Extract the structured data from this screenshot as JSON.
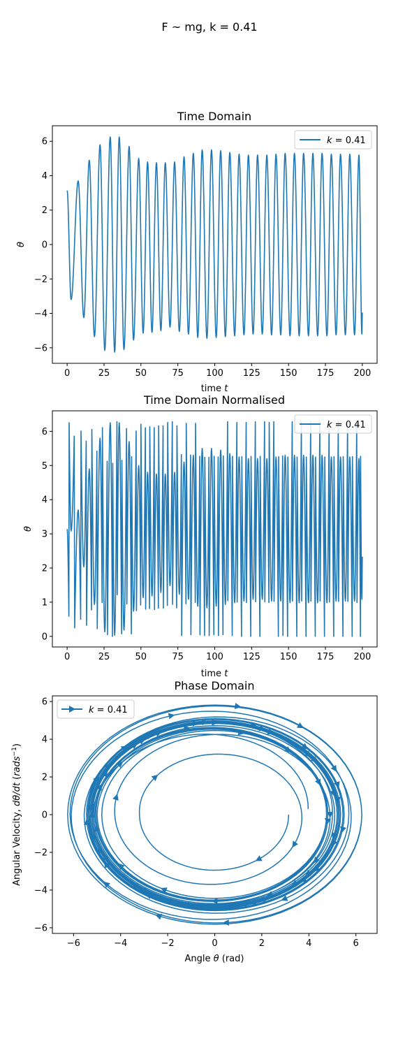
{
  "figure": {
    "suptitle": "F ~ mg, k = 0.41",
    "line_color": "#1f77b4"
  },
  "chart_data": [
    {
      "type": "line",
      "title": "Time Domain",
      "xlabel": "time t",
      "ylabel": "θ",
      "xlim": [
        -10,
        210
      ],
      "ylim": [
        -6.9,
        6.9
      ],
      "xticks": [
        0,
        25,
        50,
        75,
        100,
        125,
        150,
        175,
        200
      ],
      "yticks": [
        -6,
        -4,
        -2,
        0,
        2,
        4,
        6
      ],
      "legend": {
        "label": "k = 0.41",
        "loc": "upper right"
      },
      "grid": false,
      "series": [
        {
          "name": "k = 0.41",
          "extrema": [
            [
              0,
              3.14
            ],
            [
              2.7,
              -3.2
            ],
            [
              7.5,
              3.7
            ],
            [
              11.3,
              -4.25
            ],
            [
              15,
              4.9
            ],
            [
              18.5,
              -5.35
            ],
            [
              22.3,
              5.8
            ],
            [
              25.5,
              -6.15
            ],
            [
              29.2,
              6.25
            ],
            [
              32.2,
              -6.25
            ],
            [
              35.3,
              6.25
            ],
            [
              38.5,
              -6.1
            ],
            [
              42,
              5.7
            ],
            [
              45,
              -5.55
            ],
            [
              48.5,
              5.0
            ],
            [
              51.5,
              -5.15
            ],
            [
              54.5,
              4.8
            ],
            [
              57.5,
              -5.1
            ],
            [
              60.5,
              4.75
            ],
            [
              63.5,
              -5.0
            ],
            [
              66.5,
              4.75
            ],
            [
              69.7,
              -4.8
            ],
            [
              72.8,
              4.8
            ],
            [
              76,
              -5.05
            ],
            [
              79.2,
              5.1
            ],
            [
              82.2,
              -5.2
            ],
            [
              85.5,
              5.3
            ],
            [
              88.5,
              -5.4
            ],
            [
              91.5,
              5.5
            ],
            [
              94.7,
              -5.45
            ],
            [
              97.8,
              5.5
            ],
            [
              101,
              -5.4
            ],
            [
              104,
              5.45
            ],
            [
              107.2,
              -5.35
            ],
            [
              110.2,
              5.35
            ],
            [
              113.5,
              -5.3
            ],
            [
              116.5,
              5.25
            ],
            [
              119.8,
              -5.25
            ],
            [
              122.8,
              5.2
            ],
            [
              126,
              -5.2
            ],
            [
              129,
              5.2
            ],
            [
              132.2,
              -5.2
            ],
            [
              135.3,
              5.2
            ],
            [
              138.5,
              -5.25
            ],
            [
              141.5,
              5.25
            ],
            [
              144.7,
              -5.25
            ],
            [
              147.7,
              5.3
            ],
            [
              151,
              -5.3
            ],
            [
              154,
              5.3
            ],
            [
              157.2,
              -5.3
            ],
            [
              160.2,
              5.3
            ],
            [
              163.5,
              -5.3
            ],
            [
              166.5,
              5.3
            ],
            [
              169.7,
              -5.3
            ],
            [
              172.7,
              5.3
            ],
            [
              176,
              -5.3
            ],
            [
              179,
              5.25
            ],
            [
              182.2,
              -5.25
            ],
            [
              185.2,
              5.25
            ],
            [
              188.5,
              -5.25
            ],
            [
              191.5,
              5.25
            ],
            [
              194.7,
              -5.25
            ],
            [
              197.7,
              5.2
            ],
            [
              199.7,
              -5.2
            ],
            [
              200,
              -3.95
            ]
          ]
        }
      ]
    },
    {
      "type": "line",
      "title": "Time Domain Normalised",
      "xlabel": "time t",
      "ylabel": "θ",
      "xlim": [
        -10,
        210
      ],
      "ylim": [
        -0.31,
        6.6
      ],
      "xticks": [
        0,
        25,
        50,
        75,
        100,
        125,
        150,
        175,
        200
      ],
      "yticks": [
        0,
        1,
        2,
        3,
        4,
        5,
        6
      ],
      "legend": {
        "label": "k = 0.41",
        "loc": "upper right"
      },
      "grid": false,
      "series": [
        {
          "name": "k = 0.41",
          "derived_from": "Time Domain series, θ mod 2π"
        }
      ]
    },
    {
      "type": "line",
      "title": "Phase Domain",
      "xlabel": "Angle θ (rad)",
      "ylabel": "Angular Velocity, dθ/dt (rads⁻¹)",
      "xlim": [
        -6.9,
        6.9
      ],
      "ylim": [
        -6.3,
        6.3
      ],
      "xticks": [
        -6,
        -4,
        -2,
        0,
        2,
        4,
        6
      ],
      "yticks": [
        -6,
        -4,
        -2,
        0,
        2,
        4,
        6
      ],
      "legend": {
        "label": "k = 0.41",
        "loc": "upper left"
      },
      "grid": false,
      "series": [
        {
          "name": "k = 0.41",
          "marker": "triangle-right",
          "derived_from": "Time Domain series (θ, dθ/dt)"
        }
      ]
    }
  ]
}
